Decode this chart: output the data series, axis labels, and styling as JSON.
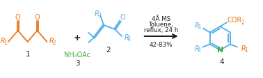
{
  "bg_color": "#ffffff",
  "orange": "#E8751A",
  "blue": "#4DAEEA",
  "green": "#3DAA35",
  "black": "#1a1a1a",
  "compound1_label": "1",
  "compound2_label": "2",
  "compound3_label": "3",
  "compound4_label": "4",
  "reagent_line1": "4Å MS",
  "reagent_line2": "Toluene,",
  "reagent_line3": "reflux, 24 h",
  "yield_text": "42-83%",
  "nh4oac": "NH₄OAc",
  "figsize": [
    3.78,
    1.12
  ],
  "dpi": 100
}
